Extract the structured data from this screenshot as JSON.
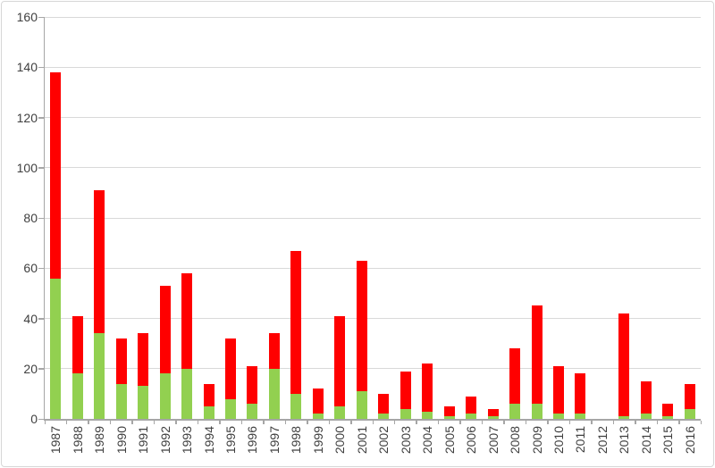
{
  "chart_data": {
    "type": "bar",
    "stacked": true,
    "grid": true,
    "legend": "none",
    "categories": [
      "1987",
      "1988",
      "1989",
      "1990",
      "1991",
      "1992",
      "1993",
      "1994",
      "1995",
      "1996",
      "1997",
      "1998",
      "1999",
      "2000",
      "2001",
      "2002",
      "2003",
      "2004",
      "2005",
      "2006",
      "2007",
      "2008",
      "2009",
      "2010",
      "2011",
      "2012",
      "2013",
      "2014",
      "2015",
      "2016"
    ],
    "series": [
      {
        "name": "green",
        "color": "#92D050",
        "values": [
          56,
          18,
          34,
          14,
          13,
          18,
          20,
          5,
          8,
          6,
          20,
          10,
          2,
          5,
          11,
          2,
          4,
          3,
          1,
          2,
          1,
          6,
          6,
          2,
          2,
          0,
          1,
          2,
          1,
          4
        ]
      },
      {
        "name": "red",
        "color": "#FF0000",
        "values": [
          82,
          23,
          57,
          18,
          21,
          35,
          38,
          9,
          24,
          15,
          14,
          57,
          10,
          36,
          52,
          8,
          15,
          19,
          4,
          7,
          3,
          22,
          39,
          19,
          16,
          0,
          41,
          13,
          5,
          10
        ]
      }
    ],
    "xlabel": "",
    "ylabel": "",
    "ylim": [
      0,
      160
    ],
    "yticks": [
      0,
      20,
      40,
      60,
      80,
      100,
      120,
      140,
      160
    ],
    "colors": {
      "gridline": "#d9d9d9",
      "axis": "#a6a6a6",
      "label_text": "#3f3f3f",
      "background": "#ffffff"
    }
  }
}
